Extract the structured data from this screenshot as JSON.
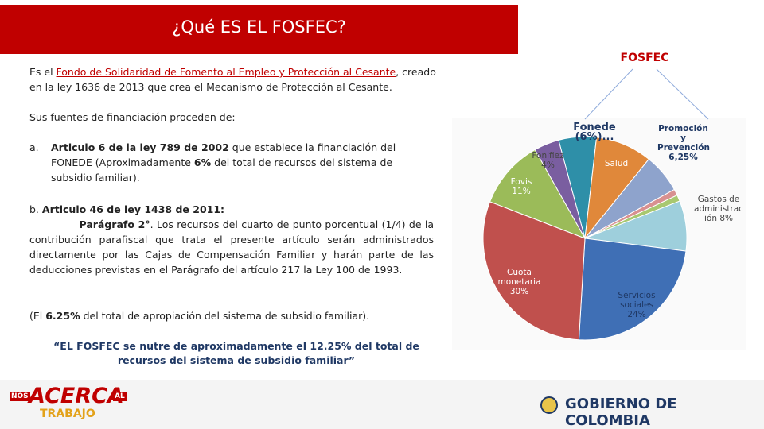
{
  "slide": {
    "title": "¿Qué ES EL FOSFEC?",
    "intro": [
      "Es el ",
      "Fondo de Solidaridad de Fomento al Empleo y Protección al Cesante",
      ", creado en la ley 1636 de 2013 que crea el Mecanismo de Protección al Cesante."
    ],
    "sources_heading": "Sus fuentes de financiación proceden de:",
    "item_a": {
      "marker": "a.",
      "parts": [
        "Articulo 6 de la ley 789 de 2002",
        " que establece la financiación del FONEDE (Aproximadamente ",
        "6%",
        " del total de recursos del sistema de subsidio familiar)."
      ]
    },
    "item_b": {
      "marker": "b.",
      "parts": [
        "Articulo 46 de ley 1438 de 2011:",
        "Parágrafo 2°",
        ". Los recursos del cuarto de punto porcentual (1/4) de la contribución parafiscal que trata el presente artículo serán administrados directamente por las Cajas de Compensación Familiar y harán parte de las deducciones previstas en el Parágrafo del artículo 217 la Ley 100 de 1993."
      ]
    },
    "note": [
      "(El ",
      "6.25%",
      " del total de apropiación del sistema de subsidio familiar)."
    ],
    "quote": "“EL FOSFEC se nutre de aproximadamente el 12.25% del total de recursos del sistema de subsidio familiar”",
    "logo_left": {
      "top": "NOS",
      "main": "ACERCA",
      "side": "AL",
      "bottom": "TRABAJO"
    },
    "logo_right": "GOBIERNO DE COLOMBIA"
  },
  "chart_data": {
    "type": "pie",
    "title": "FOSFEC",
    "categories": [
      "Fonede",
      "Salud",
      "Promoción y Prevención",
      null,
      null,
      "Gastos de administrac",
      "Servicios sociales",
      "Cuota monetaria",
      "Fovis",
      "Fonifiez"
    ],
    "values": [
      6,
      9,
      6.25,
      1,
      1,
      8,
      24,
      30,
      11,
      4
    ],
    "value_labels": [
      "(6%)...",
      null,
      "6,25%",
      null,
      null,
      "ión 8%",
      "24%",
      "30%",
      "11%",
      "4%"
    ],
    "colors": [
      "#2e8fa8",
      "#e0883a",
      "#8ea3cc",
      "#d89090",
      "#a8c870",
      "#9ecfdc",
      "#3f6fb5",
      "#c0504d",
      "#9bbb59",
      "#7a5ea0"
    ]
  }
}
